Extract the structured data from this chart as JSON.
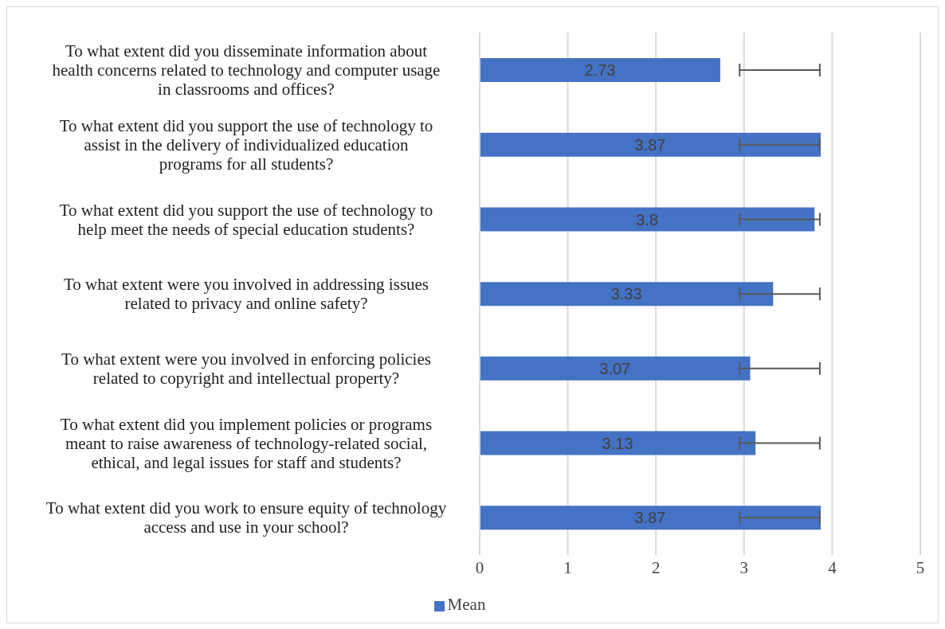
{
  "chart_data": {
    "type": "bar",
    "orientation": "horizontal",
    "categories": [
      "To what extent did you disseminate information about health concerns related to technology and computer usage in classrooms and offices?",
      "To what extent did you support the use of technology to assist in the delivery of individualized education programs for all students?",
      "To what extent did you support the use of technology to help meet the needs of special education students?",
      "To what extent were you involved in addressing issues related to privacy and online safety?",
      "To what extent were you involved in enforcing policies related to copyright and intellectual property?",
      "To what extent did you implement policies or programs meant to raise awareness of technology-related social, ethical, and legal issues for staff and students?",
      "To what extent did you work to ensure equity of technology access and use in your school?"
    ],
    "series": [
      {
        "name": "Mean",
        "color": "#4472c4",
        "values": [
          2.73,
          3.87,
          3.8,
          3.33,
          3.07,
          3.13,
          3.87
        ],
        "errors": [
          [
            2.95,
            3.86
          ],
          [
            2.95,
            3.86
          ],
          [
            2.95,
            3.86
          ],
          [
            2.95,
            3.86
          ],
          [
            2.95,
            3.86
          ],
          [
            2.95,
            3.86
          ],
          [
            2.95,
            3.86
          ]
        ]
      }
    ],
    "xlim": [
      0,
      5
    ],
    "xticks": [
      0,
      1,
      2,
      3,
      4,
      5
    ],
    "grid": "x",
    "legend": "bottom",
    "data_labels": true
  }
}
